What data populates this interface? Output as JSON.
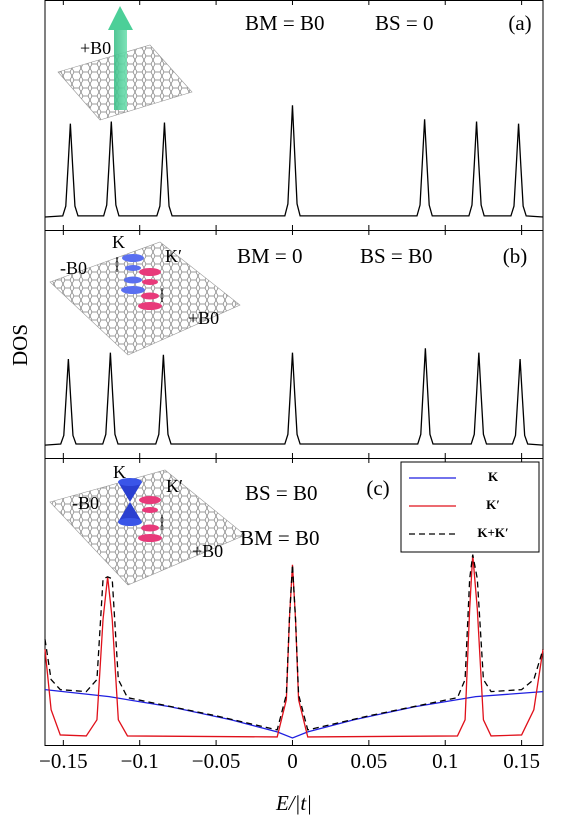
{
  "chart_data": [
    {
      "type": "line",
      "panel_label": "(a)",
      "annotations": [
        "BM = B0",
        "BS = 0",
        "+B0"
      ],
      "xlim": [
        -0.162,
        0.164
      ],
      "ylim": [
        -0.12,
        2.0
      ],
      "series": [
        {
          "color": "#000000",
          "x": [
            -0.162,
            -0.1504,
            -0.1484,
            -0.1469,
            -0.1454,
            -0.1439,
            -0.1424,
            -0.1404,
            -0.1236,
            -0.1216,
            -0.1201,
            -0.1186,
            -0.1171,
            -0.1156,
            -0.1136,
            -0.0888,
            -0.0868,
            -0.0853,
            -0.0838,
            -0.0823,
            -0.0808,
            -0.0788,
            -0.005,
            -0.003,
            -0.0015,
            0,
            0.0015,
            0.003,
            0.005,
            0.0815,
            0.0835,
            0.085,
            0.0865,
            0.088,
            0.0895,
            0.0915,
            0.1155,
            0.1175,
            0.119,
            0.1205,
            0.122,
            0.1235,
            0.1255,
            0.143,
            0.145,
            0.1465,
            0.148,
            0.1495,
            0.151,
            0.153,
            0.164
          ],
          "values": [
            0,
            0.01,
            0.1,
            0.47,
            0.86,
            0.47,
            0.1,
            0.01,
            0.01,
            0.11,
            0.48,
            0.88,
            0.48,
            0.11,
            0.01,
            0.01,
            0.1,
            0.48,
            0.87,
            0.48,
            0.1,
            0.01,
            0.01,
            0.12,
            0.57,
            1.03,
            0.57,
            0.12,
            0.01,
            0.01,
            0.11,
            0.5,
            0.9,
            0.5,
            0.11,
            0.01,
            0.01,
            0.11,
            0.48,
            0.88,
            0.48,
            0.11,
            0.01,
            0.01,
            0.1,
            0.47,
            0.86,
            0.47,
            0.1,
            0.01,
            0
          ]
        }
      ]
    },
    {
      "type": "line",
      "panel_label": "(b)",
      "y_label": "DOS",
      "annotations": [
        "BM = 0",
        "BS = B0",
        "K",
        "K′",
        "-B0",
        "+B0"
      ],
      "xlim": [
        -0.162,
        0.164
      ],
      "ylim": [
        -0.12,
        2.0
      ],
      "series": [
        {
          "color": "#000000",
          "x": [
            -0.162,
            -0.1517,
            -0.1497,
            -0.1482,
            -0.1467,
            -0.1452,
            -0.1437,
            -0.1417,
            -0.1242,
            -0.1222,
            -0.1207,
            -0.1192,
            -0.1177,
            -0.1162,
            -0.1142,
            -0.0895,
            -0.0875,
            -0.086,
            -0.0845,
            -0.083,
            -0.0815,
            -0.0795,
            -0.005,
            -0.003,
            -0.0015,
            0,
            0.0015,
            0.003,
            0.005,
            0.082,
            0.084,
            0.0855,
            0.087,
            0.0885,
            0.09,
            0.092,
            0.117,
            0.119,
            0.1205,
            0.122,
            0.1235,
            0.125,
            0.127,
            0.144,
            0.146,
            0.1475,
            0.149,
            0.1505,
            0.152,
            0.154,
            0.164
          ],
          "values": [
            0,
            0.01,
            0.09,
            0.44,
            0.8,
            0.44,
            0.09,
            0.01,
            0.01,
            0.1,
            0.47,
            0.86,
            0.47,
            0.1,
            0.01,
            0.01,
            0.1,
            0.46,
            0.84,
            0.46,
            0.1,
            0.01,
            0.01,
            0.1,
            0.47,
            0.86,
            0.47,
            0.1,
            0.01,
            0.01,
            0.1,
            0.5,
            0.9,
            0.5,
            0.1,
            0.01,
            0.01,
            0.1,
            0.47,
            0.86,
            0.47,
            0.1,
            0.01,
            0.01,
            0.09,
            0.44,
            0.8,
            0.44,
            0.09,
            0.01,
            0
          ]
        }
      ]
    },
    {
      "type": "line",
      "panel_label": "(c)",
      "x_label": "E/|t|",
      "legend": "upper right",
      "annotations": [
        "BS = B0",
        "BM = B0",
        "K",
        "K′",
        "-B0",
        "+B0"
      ],
      "xlim": [
        -0.162,
        0.164
      ],
      "ylim": [
        -0.05,
        2.8
      ],
      "xticks": [
        {
          "value": -0.15,
          "label": "−0.15"
        },
        {
          "value": -0.1,
          "label": "−0.1"
        },
        {
          "value": -0.05,
          "label": "−0.05"
        },
        0,
        0.05,
        0.1,
        0.15
      ],
      "series": [
        {
          "name": "K",
          "color": "#1f1fe0",
          "x": [
            -0.162,
            -0.12,
            -0.08,
            -0.04,
            -0.01,
            0,
            0.01,
            0.04,
            0.08,
            0.12,
            0.164
          ],
          "values": [
            0.5,
            0.43,
            0.33,
            0.2,
            0.08,
            0.02,
            0.08,
            0.2,
            0.33,
            0.43,
            0.48
          ]
        },
        {
          "name": "K′",
          "color": "#e0101a",
          "x": [
            -0.162,
            -0.158,
            -0.152,
            -0.135,
            -0.128,
            -0.124,
            -0.121,
            -0.118,
            -0.114,
            -0.108,
            -0.01,
            -0.004,
            -0.002,
            0,
            0.002,
            0.004,
            0.01,
            0.108,
            0.113,
            0.116,
            0.118,
            0.121,
            0.125,
            0.13,
            0.15,
            0.158,
            0.164
          ],
          "values": [
            0.9,
            0.3,
            0.05,
            0.04,
            0.2,
            1.2,
            1.62,
            1.2,
            0.2,
            0.04,
            0.03,
            0.4,
            1.2,
            1.74,
            1.2,
            0.4,
            0.03,
            0.04,
            0.2,
            1.3,
            1.84,
            1.3,
            0.2,
            0.04,
            0.05,
            0.3,
            0.9
          ]
        },
        {
          "name": "K+K′",
          "color": "#000000",
          "dash": true,
          "x": [
            -0.162,
            -0.158,
            -0.152,
            -0.135,
            -0.128,
            -0.124,
            -0.121,
            -0.118,
            -0.114,
            -0.108,
            -0.05,
            -0.01,
            -0.004,
            -0.002,
            0,
            0.002,
            0.004,
            0.01,
            0.05,
            0.108,
            0.113,
            0.116,
            0.118,
            0.121,
            0.125,
            0.13,
            0.15,
            0.158,
            0.164
          ],
          "values": [
            1.0,
            0.6,
            0.5,
            0.48,
            0.6,
            1.6,
            1.62,
            1.6,
            0.6,
            0.42,
            0.24,
            0.1,
            0.45,
            1.2,
            1.74,
            1.2,
            0.45,
            0.1,
            0.24,
            0.42,
            0.6,
            1.6,
            1.84,
            1.6,
            0.6,
            0.48,
            0.5,
            0.6,
            0.9
          ]
        }
      ]
    }
  ]
}
